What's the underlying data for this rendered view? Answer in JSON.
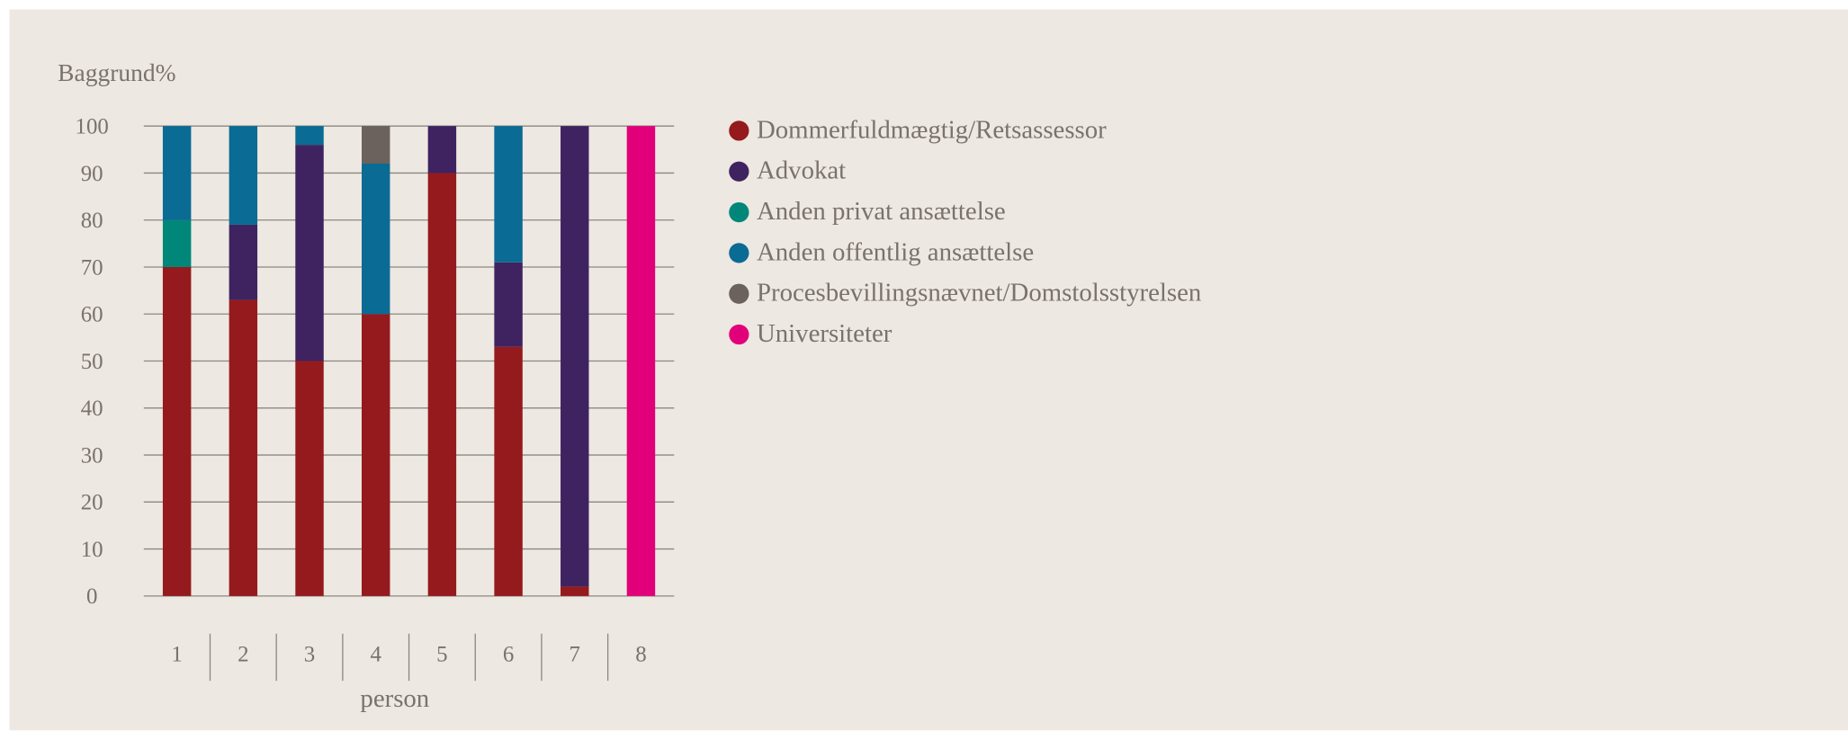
{
  "chart_data": {
    "type": "stacked_bar",
    "title": "Baggrund%",
    "x_label": "person",
    "categories": [
      "1",
      "2",
      "3",
      "4",
      "5",
      "6",
      "7",
      "8"
    ],
    "series": [
      {
        "name": "Dommerfuldmægtig/Retsassessor",
        "color": "#951a1d",
        "values": [
          70,
          63,
          50,
          60,
          90,
          53,
          2,
          0
        ]
      },
      {
        "name": "Advokat",
        "color": "#3f2360",
        "values": [
          0,
          16,
          46,
          0,
          10,
          18,
          98,
          0
        ]
      },
      {
        "name": "Anden privat ansættelse",
        "color": "#00877a",
        "values": [
          10,
          0,
          0,
          0,
          0,
          0,
          0,
          0
        ]
      },
      {
        "name": "Anden offentlig ansættelse",
        "color": "#0a6b94",
        "values": [
          20,
          21,
          4,
          32,
          0,
          29,
          0,
          0
        ]
      },
      {
        "name": "Procesbevillingsnævnet/Domstolsstyrelsen",
        "color": "#6b625d",
        "values": [
          0,
          0,
          0,
          8,
          0,
          0,
          0,
          0
        ]
      },
      {
        "name": "Universiteter",
        "color": "#e2007a",
        "values": [
          0,
          0,
          0,
          0,
          0,
          0,
          0,
          100
        ]
      }
    ],
    "ylim": [
      0,
      100
    ],
    "yticks": [
      0,
      10,
      20,
      30,
      40,
      50,
      60,
      70,
      80,
      90,
      100
    ],
    "grid": true,
    "legend": "right"
  }
}
